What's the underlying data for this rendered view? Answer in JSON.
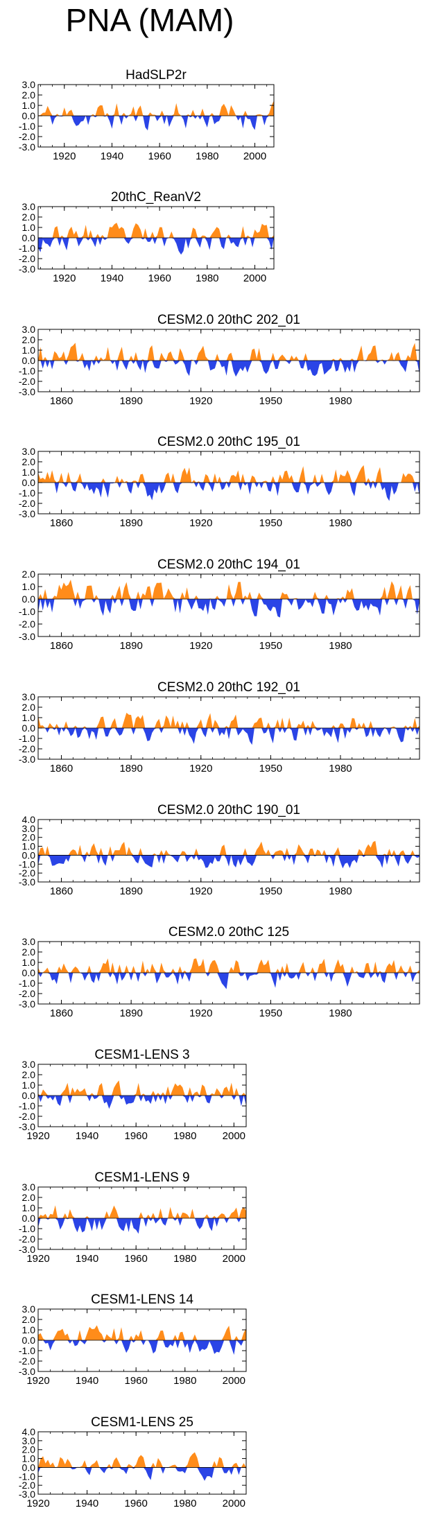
{
  "page_title": "PNA (MAM)",
  "colors": {
    "positive": "#ff8c1a",
    "negative": "#2a44e6",
    "frame": "#000000"
  },
  "chart_data": [
    {
      "id": "hadslp2r",
      "type": "area",
      "title": "HadSLP2r",
      "x_start": 1909,
      "x_end": 2008,
      "xticks": [
        1920,
        1940,
        1960,
        1980,
        2000
      ],
      "ylim": [
        -3.0,
        3.0
      ],
      "yticks": [
        "3.0",
        "2.0",
        "1.0",
        "0.0",
        "-1.0",
        "-2.0",
        "-3.0"
      ],
      "seed": 11,
      "amp": 1.2,
      "ylabel": "",
      "xlabel": ""
    },
    {
      "id": "20thc-reanv2",
      "type": "area",
      "title": "20thC_ReanV2",
      "x_start": 1909,
      "x_end": 2008,
      "xticks": [
        1920,
        1940,
        1960,
        1980,
        2000
      ],
      "ylim": [
        -3.0,
        3.0
      ],
      "yticks": [
        "3.0",
        "2.0",
        "1.0",
        "0.0",
        "-1.0",
        "-2.0",
        "-3.0"
      ],
      "seed": 23,
      "amp": 1.2,
      "ylabel": "",
      "xlabel": ""
    },
    {
      "id": "cesm2-202",
      "type": "area",
      "title": "CESM2.0 20thC 202_01",
      "x_start": 1850,
      "x_end": 2014,
      "xticks": [
        1860,
        1890,
        1920,
        1950,
        1980
      ],
      "ylim": [
        -3.0,
        3.0
      ],
      "yticks": [
        "3.0",
        "2.0",
        "1.0",
        "0.0",
        "-1.0",
        "-2.0",
        "-3.0"
      ],
      "seed": 37,
      "amp": 1.3,
      "ylabel": "",
      "xlabel": ""
    },
    {
      "id": "cesm2-195",
      "type": "area",
      "title": "CESM2.0 20thC 195_01",
      "x_start": 1850,
      "x_end": 2014,
      "xticks": [
        1860,
        1890,
        1920,
        1950,
        1980
      ],
      "ylim": [
        -3.0,
        3.0
      ],
      "yticks": [
        "3.0",
        "2.0",
        "1.0",
        "0.0",
        "-1.0",
        "-2.0",
        "-3.0"
      ],
      "seed": 41,
      "amp": 1.3,
      "ylabel": "",
      "xlabel": ""
    },
    {
      "id": "cesm2-194",
      "type": "area",
      "title": "CESM2.0 20thC 194_01",
      "x_start": 1850,
      "x_end": 2014,
      "xticks": [
        1860,
        1890,
        1920,
        1950,
        1980
      ],
      "ylim": [
        -3.0,
        2.0
      ],
      "yticks": [
        "2.0",
        "1.0",
        "0.0",
        "-1.0",
        "-2.0",
        "-3.0"
      ],
      "seed": 53,
      "amp": 1.2,
      "ylabel": "",
      "xlabel": ""
    },
    {
      "id": "cesm2-192",
      "type": "area",
      "title": "CESM2.0 20thC 192_01",
      "x_start": 1850,
      "x_end": 2014,
      "xticks": [
        1860,
        1890,
        1920,
        1950,
        1980
      ],
      "ylim": [
        -3.0,
        3.0
      ],
      "yticks": [
        "3.0",
        "2.0",
        "1.0",
        "0.0",
        "-1.0",
        "-2.0",
        "-3.0"
      ],
      "seed": 67,
      "amp": 1.2,
      "ylabel": "",
      "xlabel": ""
    },
    {
      "id": "cesm2-190",
      "type": "area",
      "title": "CESM2.0 20thC 190_01",
      "x_start": 1850,
      "x_end": 2014,
      "xticks": [
        1860,
        1890,
        1920,
        1950,
        1980
      ],
      "ylim": [
        -3.0,
        4.0
      ],
      "yticks": [
        "4.0",
        "3.0",
        "2.0",
        "1.0",
        "0.0",
        "-1.0",
        "-2.0",
        "-3.0"
      ],
      "seed": 79,
      "amp": 1.2,
      "ylabel": "",
      "xlabel": ""
    },
    {
      "id": "cesm2-125",
      "type": "area",
      "title": "CESM2.0 20thC 125",
      "x_start": 1850,
      "x_end": 2014,
      "xticks": [
        1860,
        1890,
        1920,
        1950,
        1980
      ],
      "ylim": [
        -3.0,
        3.0
      ],
      "yticks": [
        "3.0",
        "2.0",
        "1.0",
        "0.0",
        "-1.0",
        "-2.0",
        "-3.0"
      ],
      "seed": 83,
      "amp": 1.2,
      "ylabel": "",
      "xlabel": ""
    },
    {
      "id": "cesm1-lens-3",
      "type": "area",
      "title": "CESM1-LENS 3",
      "x_start": 1920,
      "x_end": 2005,
      "xticks": [
        1920,
        1940,
        1960,
        1980,
        2000
      ],
      "ylim": [
        -3.0,
        3.0
      ],
      "yticks": [
        "3.0",
        "2.0",
        "1.0",
        "0.0",
        "-1.0",
        "-2.0",
        "-3.0"
      ],
      "seed": 97,
      "amp": 1.2,
      "ylabel": "",
      "xlabel": ""
    },
    {
      "id": "cesm1-lens-9",
      "type": "area",
      "title": "CESM1-LENS 9",
      "x_start": 1920,
      "x_end": 2005,
      "xticks": [
        1920,
        1940,
        1960,
        1980,
        2000
      ],
      "ylim": [
        -3.0,
        3.0
      ],
      "yticks": [
        "3.0",
        "2.0",
        "1.0",
        "0.0",
        "-1.0",
        "-2.0",
        "-3.0"
      ],
      "seed": 101,
      "amp": 1.2,
      "ylabel": "",
      "xlabel": ""
    },
    {
      "id": "cesm1-lens-14",
      "type": "area",
      "title": "CESM1-LENS 14",
      "x_start": 1920,
      "x_end": 2005,
      "xticks": [
        1920,
        1940,
        1960,
        1980,
        2000
      ],
      "ylim": [
        -3.0,
        3.0
      ],
      "yticks": [
        "3.0",
        "2.0",
        "1.0",
        "0.0",
        "-1.0",
        "-2.0",
        "-3.0"
      ],
      "seed": 113,
      "amp": 1.2,
      "ylabel": "",
      "xlabel": ""
    },
    {
      "id": "cesm1-lens-25",
      "type": "area",
      "title": "CESM1-LENS 25",
      "x_start": 1920,
      "x_end": 2005,
      "xticks": [
        1920,
        1940,
        1960,
        1980,
        2000
      ],
      "ylim": [
        -3.0,
        4.0
      ],
      "yticks": [
        "4.0",
        "3.0",
        "2.0",
        "1.0",
        "0.0",
        "-1.0",
        "-2.0",
        "-3.0"
      ],
      "seed": 127,
      "amp": 1.2,
      "ylabel": "",
      "xlabel": ""
    }
  ]
}
